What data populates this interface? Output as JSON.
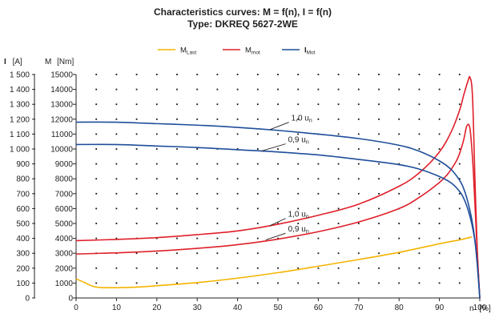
{
  "chart_data": {
    "type": "line",
    "title": "Characteristics curves: M = f(n), I = f(n)",
    "subtitle": "Type: DKREQ 5627-2WE",
    "xlabel": "n",
    "xunit": "[%]",
    "x_ticks": [
      "0",
      "10",
      "20",
      "30",
      "40",
      "50",
      "60",
      "70",
      "80",
      "90",
      "100"
    ],
    "xlim": [
      0,
      100
    ],
    "y_left_label": "I",
    "y_left_unit": "[A]",
    "y_left_ticks": [
      "0",
      "100",
      "200",
      "300",
      "400",
      "500",
      "600",
      "700",
      "800",
      "900",
      "1 000",
      "1 100",
      "1 200",
      "1 300",
      "1 400",
      "1 500"
    ],
    "y_left_lim": [
      0,
      1500
    ],
    "y_right_label": "M",
    "y_right_unit": "[Nm]",
    "y_right_ticks": [
      "0",
      "1000",
      "2000",
      "3000",
      "4000",
      "5000",
      "6000",
      "7000",
      "8000",
      "9000",
      "10000",
      "11000",
      "12000",
      "13000",
      "14000",
      "15000"
    ],
    "y_right_lim": [
      0,
      15000
    ],
    "grid": "dotted",
    "legend_position": "top-center",
    "legend": [
      {
        "main": "M",
        "sub": "Last",
        "color": "#f5b400"
      },
      {
        "main": "M",
        "sub": "mot",
        "color": "#e0202a"
      },
      {
        "main": "I",
        "sub": "Mot",
        "color": "#1f4e9a"
      }
    ],
    "series": [
      {
        "name": "MLast",
        "color": "#f5b400",
        "x": [
          0,
          2,
          4,
          6,
          8,
          10,
          15,
          20,
          30,
          40,
          50,
          60,
          70,
          80,
          90,
          95,
          98
        ],
        "y": [
          1280,
          1050,
          800,
          700,
          690,
          690,
          730,
          820,
          1030,
          1330,
          1700,
          2130,
          2580,
          3060,
          3640,
          3900,
          4100
        ]
      },
      {
        "name": "Mmot 1,0 un",
        "color": "#e0202a",
        "x": [
          0,
          10,
          20,
          30,
          40,
          50,
          60,
          70,
          80,
          85,
          90,
          93,
          95,
          96,
          97,
          97.6,
          98.2,
          98.8,
          99.4,
          100
        ],
        "y": [
          3850,
          3930,
          4050,
          4250,
          4500,
          4950,
          5550,
          6300,
          7500,
          8400,
          9800,
          11200,
          12600,
          13600,
          14500,
          14800,
          13500,
          8000,
          3000,
          0
        ]
      },
      {
        "name": "Mmot 0,9 un",
        "color": "#e0202a",
        "x": [
          0,
          10,
          20,
          30,
          40,
          50,
          60,
          70,
          80,
          85,
          90,
          92,
          94,
          95,
          96,
          96.8,
          97.6,
          98.4,
          99.2,
          100
        ],
        "y": [
          2950,
          3030,
          3150,
          3330,
          3580,
          3950,
          4450,
          5100,
          6000,
          6750,
          7750,
          8300,
          9100,
          9700,
          10600,
          11550,
          11300,
          8500,
          4000,
          0
        ]
      },
      {
        "name": "IMot 1,0 un",
        "color": "#1f4e9a",
        "x": [
          0,
          10,
          20,
          30,
          40,
          50,
          60,
          70,
          80,
          85,
          90,
          93,
          95,
          96,
          97,
          98,
          98.8,
          99.4,
          100
        ],
        "y": [
          1180,
          1180,
          1170,
          1160,
          1145,
          1125,
          1100,
          1070,
          1025,
          985,
          920,
          860,
          790,
          735,
          650,
          530,
          390,
          220,
          0
        ]
      },
      {
        "name": "IMot 0,9 un",
        "color": "#1f4e9a",
        "x": [
          0,
          10,
          20,
          30,
          40,
          50,
          60,
          70,
          80,
          85,
          90,
          93,
          95,
          96,
          97,
          98,
          98.8,
          99.4,
          100
        ],
        "y": [
          1030,
          1030,
          1020,
          1010,
          995,
          980,
          960,
          930,
          895,
          865,
          815,
          770,
          715,
          670,
          600,
          500,
          380,
          220,
          0
        ]
      }
    ],
    "annotations": [
      {
        "text": "1,0 u",
        "sub": "n",
        "target_series": "IMot 1,0 un",
        "point_x": 48,
        "point_y": 1130,
        "label_x": 53.3,
        "label_y": 1190
      },
      {
        "text": "0,9 u",
        "sub": "n",
        "target_series": "IMot 0,9 un",
        "point_x": 46,
        "point_y": 987,
        "label_x": 52.5,
        "label_y": 1045
      },
      {
        "text": "1,0 u",
        "sub": "n",
        "target_series": "Mmot 1,0 un",
        "point_x": 48,
        "point_y": 4850,
        "label_x": 52.5,
        "label_y": 5450
      },
      {
        "text": "0,9 u",
        "sub": "n",
        "target_series": "Mmot 0,9 un",
        "point_x": 47,
        "point_y": 3900,
        "label_x": 52.5,
        "label_y": 4450
      }
    ]
  }
}
